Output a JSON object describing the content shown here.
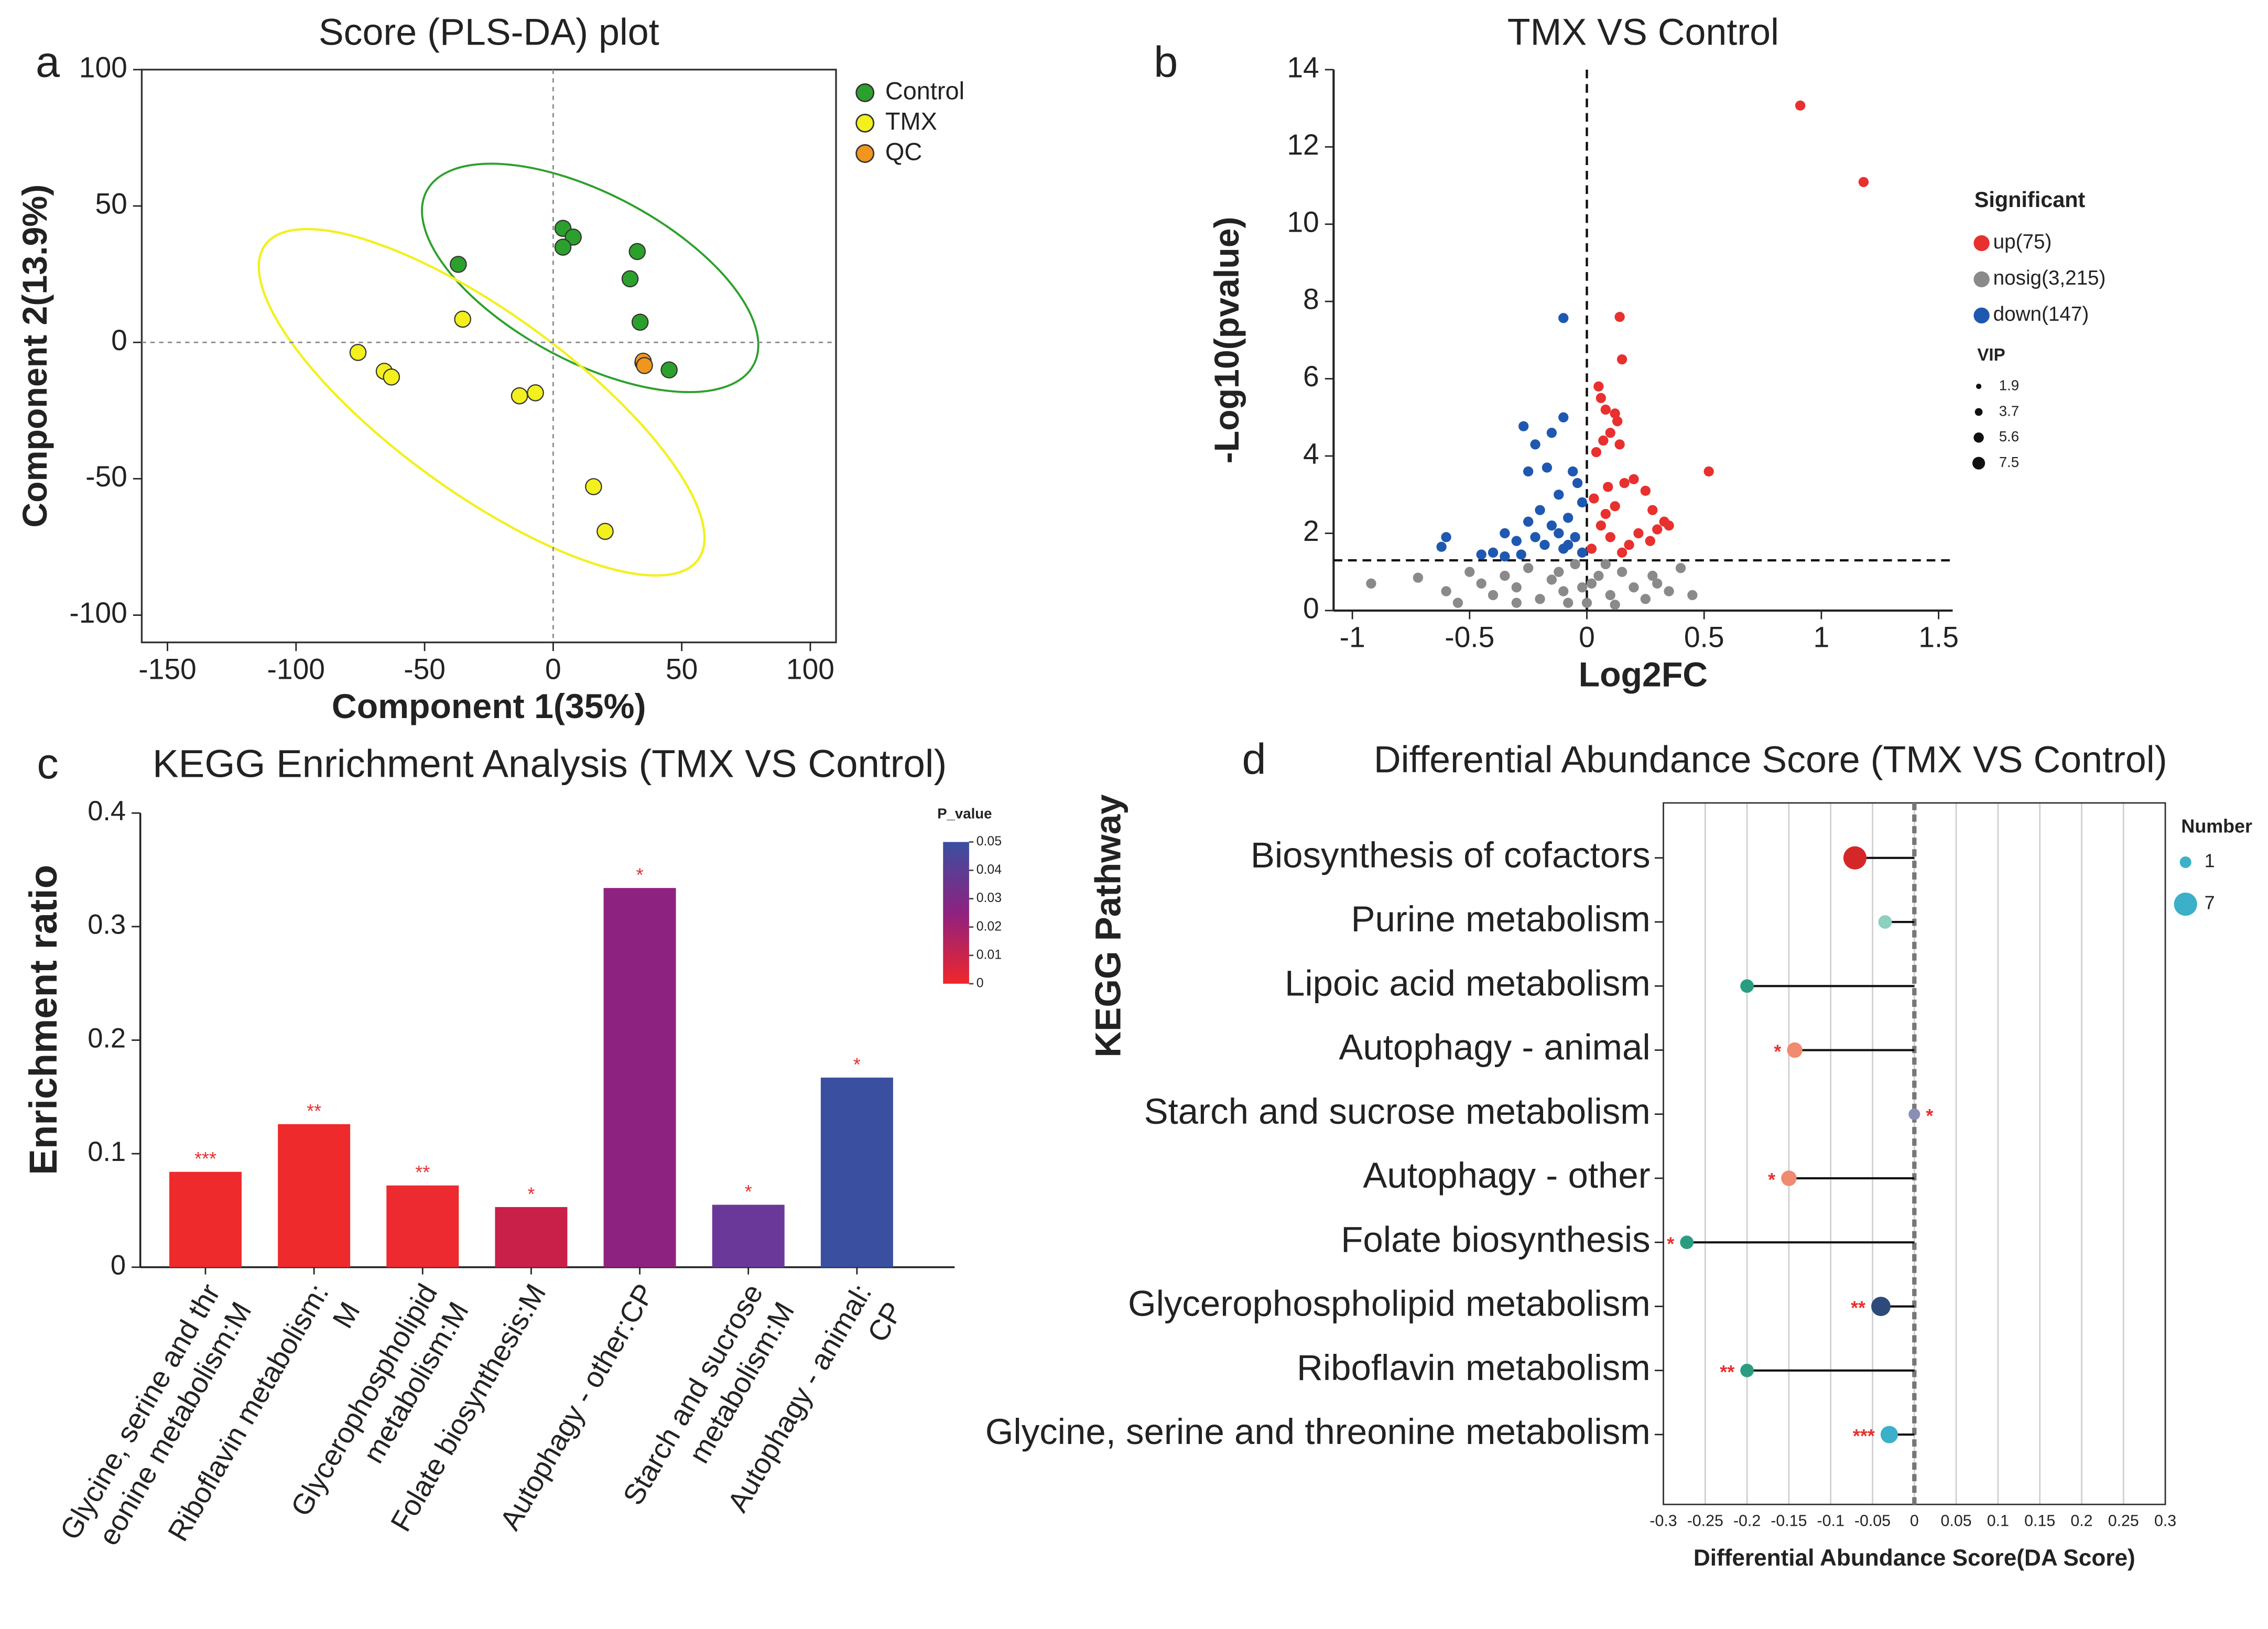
{
  "chart_data": [
    {
      "type": "scatter",
      "panel_label": "a",
      "title": "Score (PLS-DA) plot",
      "xlabel": "Component 1(35%)",
      "ylabel": "Component 2(13.9%)",
      "xlim": [
        -160,
        110
      ],
      "ylim": [
        -110,
        100
      ],
      "xticks": [
        -150,
        -100,
        -50,
        0,
        50,
        100
      ],
      "yticks": [
        -100,
        -50,
        0,
        50,
        100
      ],
      "vlines": [
        0
      ],
      "hlines": [
        0
      ],
      "frame": true,
      "marker_size": 5.5,
      "marker_outline": "#333",
      "legend": "right",
      "series": [
        {
          "name": "Control",
          "color": "#2ca02c",
          "x": [
            3.8,
            7.8,
            3.8,
            -36.9,
            32.7,
            29.9,
            33.8,
            45.1,
            34.9
          ],
          "values": [
            41.8,
            38.6,
            34.9,
            28.6,
            33.3,
            23.3,
            7.4,
            -10.1,
            -7.4
          ]
        },
        {
          "name": "TMX",
          "color": "#f3f01e",
          "x": [
            -75.9,
            -65.7,
            -62.9,
            -35.2,
            -13.1,
            -6.9,
            15.7,
            20.2
          ],
          "values": [
            -3.7,
            -10.6,
            -12.7,
            8.5,
            -19.6,
            -18.5,
            -52.9,
            -69.3
          ]
        },
        {
          "name": "QC",
          "color": "#f0961e",
          "x": [
            35.0,
            35.5
          ],
          "values": [
            -6.9,
            -8.5
          ]
        }
      ]
    },
    {
      "type": "scatter",
      "panel_label": "b",
      "title": "TMX VS Control",
      "xlabel": "Log2FC",
      "ylabel": "-Log10(pvalue)",
      "xlim": [
        -1.08,
        1.56
      ],
      "ylim": [
        0,
        14
      ],
      "xticks": [
        -1,
        -0.5,
        0,
        0.5,
        1,
        1.5
      ],
      "yticks": [
        0,
        2,
        4,
        6,
        8,
        10,
        12,
        14
      ],
      "vlines": [
        0
      ],
      "hlines": [
        1.3
      ],
      "frame": false,
      "marker_size": 3.5,
      "legend": "right",
      "legend_title": "Significant",
      "size_legend": {
        "title": "VIP",
        "values": [
          1.9,
          3.7,
          5.6,
          7.5
        ]
      },
      "series": [
        {
          "name": "up(75)",
          "color": "#e8302e",
          "x": [
            0.91,
            1.18,
            0.52,
            0.14,
            0.15,
            0.05,
            0.06,
            0.08,
            0.12,
            0.13,
            0.1,
            0.07,
            0.14,
            0.04,
            0.2,
            0.09,
            0.16,
            0.25,
            0.03,
            0.12,
            0.28,
            0.33,
            0.3,
            0.22,
            0.06,
            0.1,
            0.18,
            0.27,
            0.02,
            0.15,
            0.35,
            0.08
          ],
          "values": [
            13.07,
            11.09,
            3.6,
            7.6,
            6.5,
            5.8,
            5.5,
            5.2,
            5.1,
            4.9,
            4.6,
            4.4,
            4.3,
            4.1,
            3.4,
            3.2,
            3.3,
            3.1,
            2.9,
            2.7,
            2.6,
            2.3,
            2.1,
            2.0,
            2.2,
            1.9,
            1.7,
            1.8,
            1.6,
            1.5,
            2.2,
            2.5
          ]
        },
        {
          "name": "nosig(3,215)",
          "color": "#8a8a8a",
          "x": [
            -0.92,
            -0.72,
            -0.6,
            -0.5,
            -0.45,
            -0.4,
            -0.35,
            -0.3,
            -0.25,
            -0.2,
            -0.15,
            -0.1,
            -0.05,
            0,
            0.05,
            0.1,
            0.15,
            0.2,
            0.25,
            0.3,
            0.35,
            0.4,
            -0.02,
            0.02,
            -0.08,
            0.08,
            -0.12,
            0.12,
            -0.3,
            0.28,
            0.45,
            -0.55
          ],
          "values": [
            0.7,
            0.85,
            0.5,
            1.0,
            0.7,
            0.4,
            0.9,
            0.6,
            1.1,
            0.3,
            0.8,
            0.5,
            1.2,
            0.2,
            0.9,
            0.4,
            1.0,
            0.6,
            0.3,
            0.7,
            0.5,
            1.1,
            0.6,
            0.7,
            0.2,
            1.2,
            1.0,
            0.15,
            0.2,
            0.9,
            0.4,
            0.2
          ]
        },
        {
          "name": "down(147)",
          "color": "#1f58b0",
          "x": [
            -0.1,
            -0.27,
            -0.1,
            -0.15,
            -0.22,
            -0.06,
            -0.25,
            -0.17,
            -0.04,
            -0.12,
            -0.02,
            -0.2,
            -0.6,
            -0.62,
            -0.35,
            -0.3,
            -0.08,
            -0.15,
            -0.25,
            -0.4,
            -0.05,
            -0.18,
            -0.1,
            -0.28,
            -0.35,
            -0.45,
            -0.02,
            -0.12,
            -0.22,
            -0.08
          ],
          "values": [
            7.57,
            4.77,
            5.0,
            4.6,
            4.3,
            3.6,
            3.6,
            3.7,
            3.3,
            3.0,
            2.8,
            2.6,
            1.9,
            1.65,
            2.0,
            1.8,
            2.4,
            2.2,
            2.3,
            1.5,
            1.9,
            1.7,
            1.6,
            1.45,
            1.4,
            1.45,
            1.5,
            2.0,
            1.9,
            1.7
          ]
        }
      ]
    },
    {
      "type": "bar",
      "panel_label": "c",
      "title": "KEGG Enrichment Analysis (TMX VS Control)",
      "ylabel": "Enrichment ratio",
      "categories": [
        [
          "Glycine, serine and thr",
          "eonine  metabolism:M"
        ],
        [
          "Riboflavin metabolism:",
          "M"
        ],
        [
          "Glycerophospholipid",
          "metabolism:M"
        ],
        [
          "Folate biosynthesis:M"
        ],
        [
          "Autophagy - other:CP"
        ],
        [
          "Starch and sucrose",
          "metabolism:M"
        ],
        [
          "Autophagy - animal:",
          "CP"
        ]
      ],
      "values": [
        0.084,
        0.126,
        0.072,
        0.053,
        0.334,
        0.055,
        0.167
      ],
      "colors": [
        "#ee2a2c",
        "#ee2a2c",
        "#ec2a30",
        "#c9204a",
        "#8e2280",
        "#6a3899",
        "#3a4fa0"
      ],
      "annotations": [
        "***",
        "**",
        "**",
        "*",
        "*",
        "*",
        "*"
      ],
      "ylim": [
        0,
        0.4
      ],
      "yticks": [
        0,
        0.1,
        0.2,
        0.3,
        0.4
      ],
      "colorbar": {
        "title": "P_value",
        "lim": [
          0,
          0.05
        ],
        "ticks": [
          0,
          0.01,
          0.02,
          0.03,
          0.04,
          0.05
        ],
        "colors": [
          "#f0262a",
          "#8e2280",
          "#3a4fa0"
        ]
      }
    },
    {
      "type": "lollipop",
      "panel_label": "d",
      "title": "Differential Abundance Score (TMX VS Control)",
      "xlabel": "Differential Abundance Score(DA Score)",
      "ylabel": "KEGG Pathway",
      "categories": [
        "Biosynthesis of cofactors",
        "Purine metabolism",
        "Lipoic acid metabolism",
        "Autophagy - animal",
        "Starch and sucrose metabolism",
        "Autophagy - other",
        "Folate biosynthesis",
        "Glycerophospholipid metabolism",
        "Riboflavin metabolism",
        "Glycine, serine and threonine metabolism"
      ],
      "values": [
        -0.071,
        -0.035,
        -0.2,
        -0.143,
        0,
        -0.15,
        -0.272,
        -0.04,
        -0.2,
        -0.03
      ],
      "sizes": [
        7,
        2,
        2,
        3,
        1,
        3,
        2,
        5,
        2,
        4
      ],
      "colors": [
        "#d62728",
        "#8dcfc0",
        "#2a9d80",
        "#f08a70",
        "#8a8fb5",
        "#f08a70",
        "#2a9d80",
        "#2e4a7a",
        "#2a9d80",
        "#3bb0c8"
      ],
      "annotations": [
        null,
        null,
        null,
        "*",
        "*",
        "*",
        "*",
        "**",
        "**",
        "***"
      ],
      "xlim": [
        -0.3,
        0.3
      ],
      "xticks": [
        -0.3,
        -0.25,
        -0.2,
        -0.15,
        -0.1,
        -0.05,
        0,
        0.05,
        0.1,
        0.15,
        0.2,
        0.25,
        0.3
      ],
      "vlines": [
        0
      ],
      "grid": true,
      "size_legend": {
        "title": "Number",
        "values": [
          1,
          7
        ],
        "color": "#3bb0c8"
      }
    }
  ]
}
